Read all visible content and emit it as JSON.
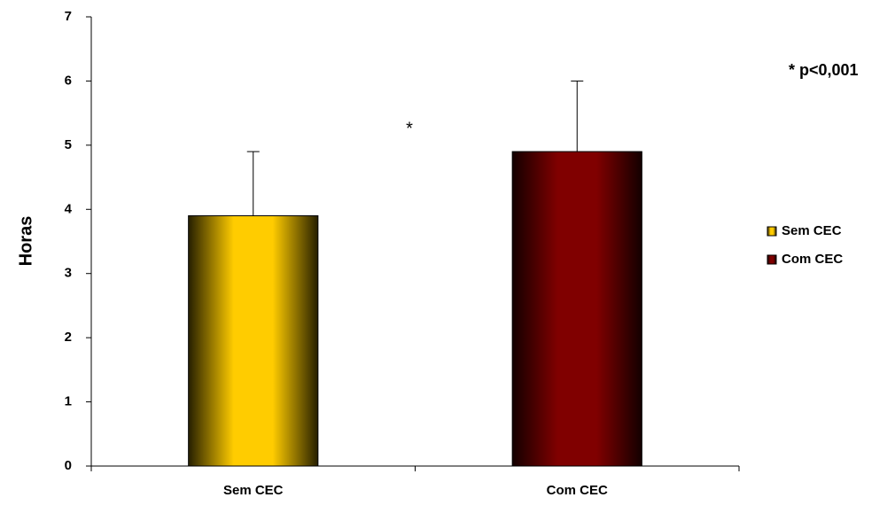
{
  "chart_data": {
    "type": "bar",
    "y_label": "Horas",
    "categories": [
      "Sem CEC",
      "Com CEC"
    ],
    "values": [
      3.9,
      4.9
    ],
    "errors": [
      1.0,
      1.1
    ],
    "colors": [
      "#ffcc00",
      "#800000"
    ],
    "ylim": [
      0,
      7
    ],
    "yticks": [
      0,
      1,
      2,
      3,
      4,
      5,
      6,
      7
    ],
    "annotations": [
      "*",
      "* p<0,001"
    ],
    "legend": "right"
  }
}
